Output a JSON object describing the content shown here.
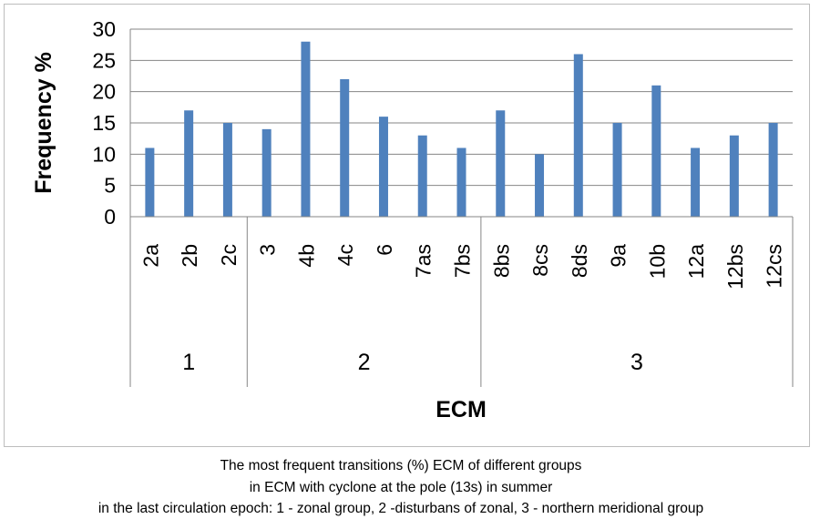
{
  "chart_data": {
    "type": "bar",
    "ylabel": "Frequency %",
    "xlabel": "ECM",
    "ylim": [
      0,
      30
    ],
    "yticks": [
      0,
      5,
      10,
      15,
      20,
      25,
      30
    ],
    "grid": true,
    "bar_color": "#4f81bd",
    "categories": [
      "2a",
      "2b",
      "2c",
      "3",
      "4b",
      "4c",
      "6",
      "7as",
      "7bs",
      "8bs",
      "8cs",
      "8ds",
      "9a",
      "10b",
      "12a",
      "12bs",
      "12cs"
    ],
    "values": [
      11,
      17,
      15,
      14,
      28,
      22,
      16,
      13,
      11,
      17,
      10,
      26,
      15,
      21,
      11,
      13,
      15
    ],
    "groups": [
      {
        "label": "1",
        "count": 3
      },
      {
        "label": "2",
        "count": 6
      },
      {
        "label": "3",
        "count": 8
      }
    ]
  },
  "caption": {
    "line1": "The most frequent transitions (%) ECM of different groups",
    "line2": "in ECM with cyclone at the pole (13s) in summer",
    "line3": "in the last circulation epoch: 1 - zonal group, 2 -disturbans of zonal, 3 -  northern meridional group"
  }
}
